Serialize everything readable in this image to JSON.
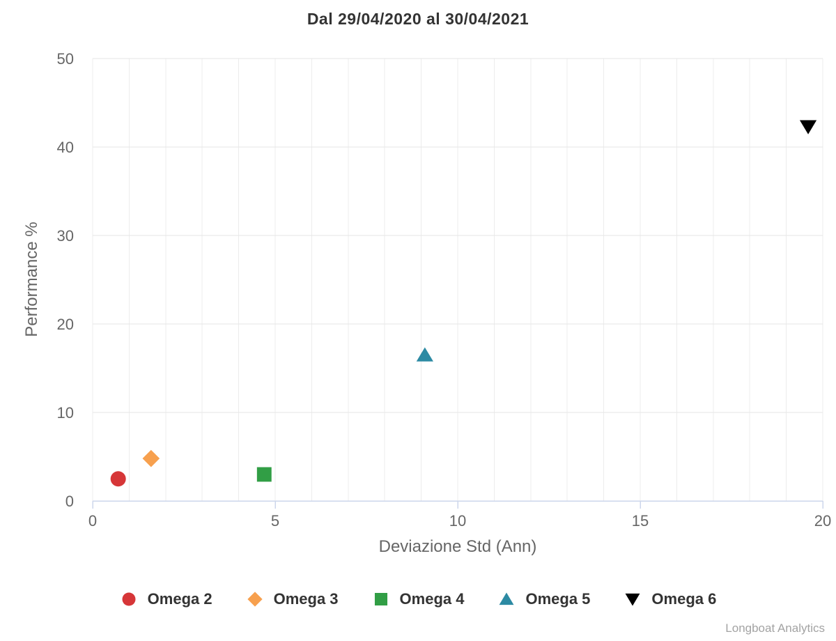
{
  "chart": {
    "credits": "Longboat Analytics"
  },
  "chart_data": {
    "type": "scatter",
    "title": "Dal 29/04/2020 al 30/04/2021",
    "xlabel": "Deviazione Std (Ann)",
    "ylabel": "Performance %",
    "xlim": [
      0,
      20
    ],
    "ylim": [
      0,
      50
    ],
    "x_ticks": [
      0,
      5,
      10,
      15,
      20
    ],
    "y_ticks": [
      0,
      10,
      20,
      30,
      40,
      50
    ],
    "x_minor_grid_step": 1,
    "grid": true,
    "legend_position": "bottom-center",
    "series": [
      {
        "name": "Omega 2",
        "marker": "circle",
        "color": "#d63638",
        "points": [
          [
            0.7,
            2.5
          ]
        ]
      },
      {
        "name": "Omega 3",
        "marker": "diamond",
        "color": "#f7a04e",
        "points": [
          [
            1.6,
            4.8
          ]
        ]
      },
      {
        "name": "Omega 4",
        "marker": "square",
        "color": "#319e45",
        "points": [
          [
            4.7,
            3.0
          ]
        ]
      },
      {
        "name": "Omega 5",
        "marker": "triangle-up",
        "color": "#2c8aa3",
        "points": [
          [
            9.1,
            16.5
          ]
        ]
      },
      {
        "name": "Omega 6",
        "marker": "triangle-down",
        "color": "#000000",
        "points": [
          [
            19.6,
            42.3
          ]
        ]
      }
    ]
  },
  "colors": {
    "title": "#333333",
    "tick_label": "#666666",
    "axis_title": "#666666",
    "axis_line": "#ccd6eb",
    "grid_major": "#e6e6e6",
    "grid_minor": "#ececec",
    "legend_text": "#333333",
    "credits": "#a3a3a3",
    "background": "#ffffff"
  }
}
